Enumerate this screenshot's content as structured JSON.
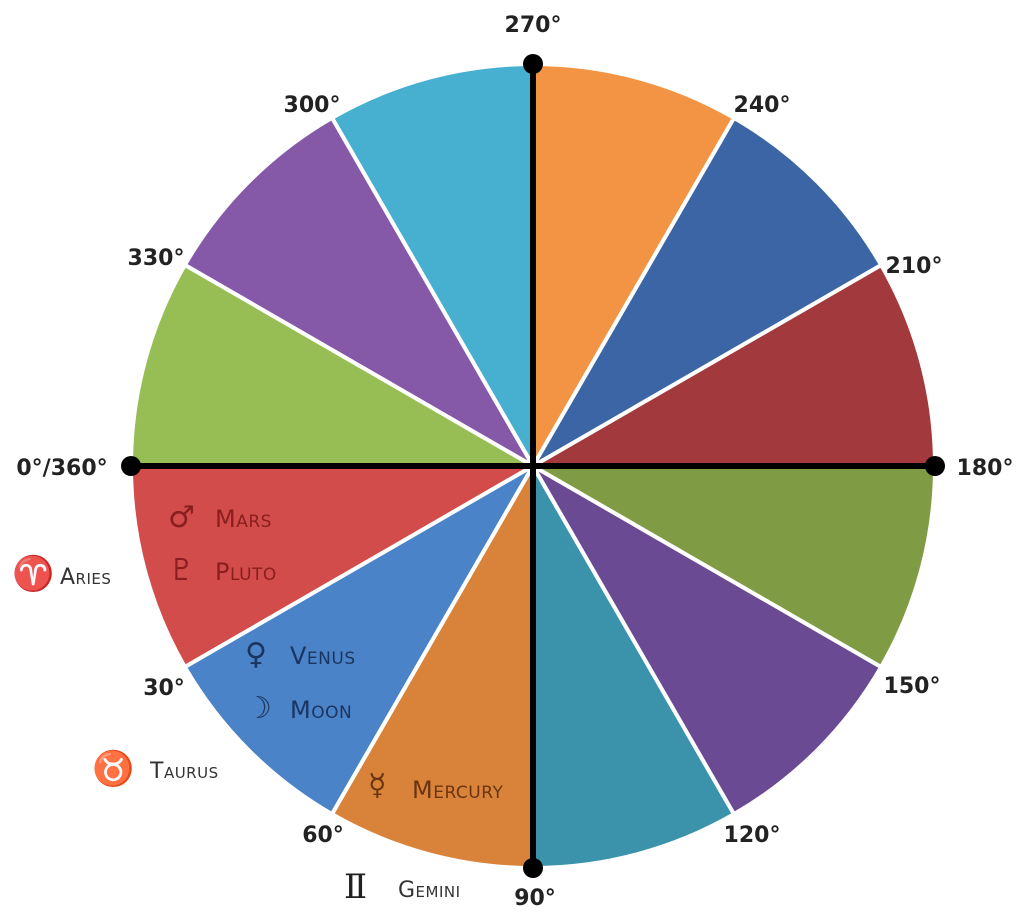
{
  "sectors": [
    {
      "start": 0,
      "color": "#d24c4c"
    },
    {
      "start": 30,
      "color": "#4a83c8"
    },
    {
      "start": 60,
      "color": "#d9833a"
    },
    {
      "start": 90,
      "color": "#3a93ab"
    },
    {
      "start": 120,
      "color": "#6a4a92"
    },
    {
      "start": 150,
      "color": "#7f9c45"
    },
    {
      "start": 180,
      "color": "#a2393c"
    },
    {
      "start": 210,
      "color": "#3b65a4"
    },
    {
      "start": 240,
      "color": "#f39444"
    },
    {
      "start": 270,
      "color": "#47b0d1"
    },
    {
      "start": 300,
      "color": "#8559a8"
    },
    {
      "start": 330,
      "color": "#97be54"
    }
  ],
  "degree_labels": [
    {
      "angle": 0,
      "text": "0°/360°"
    },
    {
      "angle": 30,
      "text": "30°"
    },
    {
      "angle": 60,
      "text": "60°"
    },
    {
      "angle": 90,
      "text": "90°"
    },
    {
      "angle": 120,
      "text": "120°"
    },
    {
      "angle": 150,
      "text": "150°"
    },
    {
      "angle": 180,
      "text": "180°"
    },
    {
      "angle": 210,
      "text": "210°"
    },
    {
      "angle": 240,
      "text": "240°"
    },
    {
      "angle": 270,
      "text": "270°"
    },
    {
      "angle": 300,
      "text": "300°"
    },
    {
      "angle": 330,
      "text": "330°"
    }
  ],
  "planets": [
    {
      "glyph": "♂",
      "name": "Mars",
      "color": "#8a1e1e"
    },
    {
      "glyph": "♇",
      "name": "Pluto",
      "color": "#8a1e1e"
    },
    {
      "glyph": "♀",
      "name": "Venus",
      "color": "#1b3560"
    },
    {
      "glyph": "☽",
      "name": "Moon",
      "color": "#1b3560"
    },
    {
      "glyph": "☿",
      "name": "Mercury",
      "color": "#6b3410"
    }
  ],
  "signs": [
    {
      "glyph": "♈",
      "name": "Aries"
    },
    {
      "glyph": "♉",
      "name": "Taurus"
    },
    {
      "glyph": "Ⅱ",
      "name": "Gemini"
    }
  ]
}
